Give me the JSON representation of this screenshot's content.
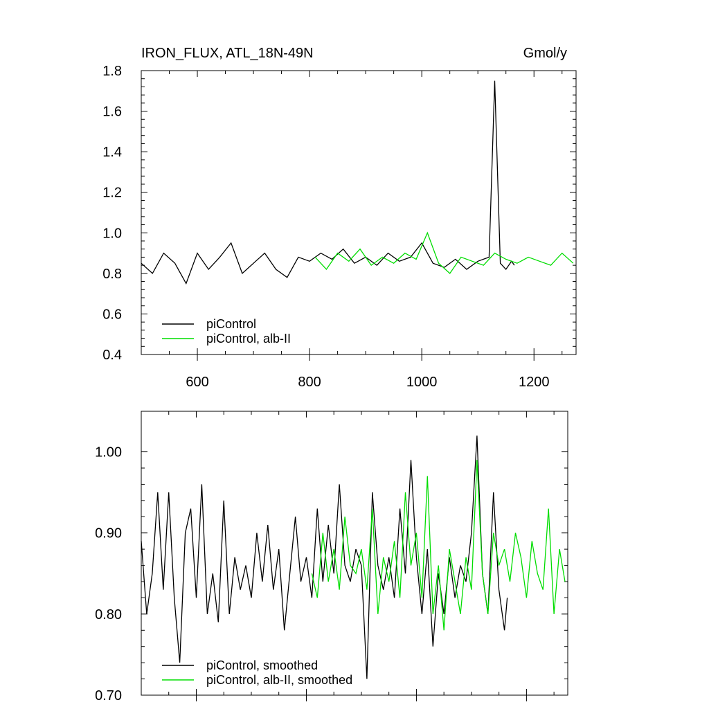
{
  "chart_data": [
    {
      "type": "line",
      "title": "IRON_FLUX, ATL_18N-49N",
      "units": "Gmol/y",
      "xlim": [
        500,
        1275
      ],
      "ylim": [
        0.4,
        1.8
      ],
      "x_ticks": [
        600,
        800,
        1000,
        1200
      ],
      "x_tick_labels": [
        "600",
        "800",
        "1000",
        "1200"
      ],
      "y_ticks": [
        0.4,
        0.6,
        0.8,
        1.0,
        1.2,
        1.4,
        1.6,
        1.8
      ],
      "y_tick_labels": [
        "0.4",
        "0.6",
        "0.8",
        "1.0",
        "1.2",
        "1.4",
        "1.6",
        "1.8"
      ],
      "legend_position": "bottom-left",
      "grid": false,
      "series": [
        {
          "name": "piControl",
          "color": "#000000",
          "x": [
            500,
            520,
            540,
            560,
            580,
            600,
            620,
            640,
            660,
            680,
            700,
            720,
            740,
            760,
            780,
            800,
            820,
            840,
            860,
            880,
            900,
            920,
            940,
            960,
            980,
            1000,
            1020,
            1040,
            1060,
            1080,
            1100,
            1120,
            1130,
            1140,
            1150,
            1160,
            1165
          ],
          "y": [
            0.85,
            0.8,
            0.9,
            0.85,
            0.75,
            0.9,
            0.82,
            0.88,
            0.95,
            0.8,
            0.85,
            0.9,
            0.82,
            0.78,
            0.88,
            0.86,
            0.9,
            0.87,
            0.92,
            0.85,
            0.88,
            0.84,
            0.9,
            0.86,
            0.88,
            0.95,
            0.85,
            0.83,
            0.87,
            0.82,
            0.86,
            0.88,
            1.75,
            0.85,
            0.82,
            0.86,
            0.84
          ]
        },
        {
          "name": "piControl, alb-II",
          "color": "#00dd00",
          "x": [
            810,
            830,
            850,
            870,
            890,
            910,
            930,
            950,
            970,
            990,
            1010,
            1030,
            1050,
            1070,
            1090,
            1110,
            1130,
            1150,
            1170,
            1190,
            1210,
            1230,
            1250,
            1270
          ],
          "y": [
            0.88,
            0.82,
            0.9,
            0.86,
            0.92,
            0.84,
            0.88,
            0.85,
            0.9,
            0.87,
            1.0,
            0.85,
            0.8,
            0.88,
            0.86,
            0.84,
            0.9,
            0.87,
            0.85,
            0.88,
            0.86,
            0.84,
            0.9,
            0.85
          ]
        }
      ]
    },
    {
      "type": "line",
      "xlim": [
        500,
        1275
      ],
      "ylim": [
        0.7,
        1.05
      ],
      "x_ticks": [
        600,
        800,
        1000,
        1200
      ],
      "y_ticks": [
        0.7,
        0.8,
        0.9,
        1.0
      ],
      "y_tick_labels": [
        "0.70",
        "0.80",
        "0.90",
        "1.00"
      ],
      "legend_position": "bottom-left",
      "grid": false,
      "series": [
        {
          "name": "piControl, smoothed",
          "color": "#000000",
          "x": [
            500,
            510,
            520,
            530,
            540,
            550,
            560,
            570,
            580,
            590,
            600,
            610,
            620,
            630,
            640,
            650,
            660,
            670,
            680,
            690,
            700,
            710,
            720,
            730,
            740,
            750,
            760,
            770,
            780,
            790,
            800,
            810,
            820,
            830,
            840,
            850,
            860,
            870,
            880,
            890,
            900,
            910,
            920,
            930,
            940,
            950,
            960,
            970,
            980,
            990,
            1000,
            1010,
            1020,
            1030,
            1040,
            1050,
            1060,
            1070,
            1080,
            1090,
            1100,
            1110,
            1120,
            1130,
            1140,
            1150,
            1160,
            1165
          ],
          "y": [
            0.89,
            0.8,
            0.85,
            0.95,
            0.83,
            0.95,
            0.82,
            0.74,
            0.9,
            0.93,
            0.82,
            0.96,
            0.8,
            0.85,
            0.79,
            0.94,
            0.8,
            0.87,
            0.83,
            0.86,
            0.82,
            0.9,
            0.84,
            0.91,
            0.83,
            0.88,
            0.78,
            0.85,
            0.92,
            0.84,
            0.87,
            0.82,
            0.93,
            0.84,
            0.91,
            0.85,
            0.96,
            0.86,
            0.84,
            0.88,
            0.86,
            0.72,
            0.95,
            0.86,
            0.83,
            0.87,
            0.82,
            0.93,
            0.85,
            0.99,
            0.87,
            0.8,
            0.88,
            0.76,
            0.85,
            0.8,
            0.87,
            0.82,
            0.86,
            0.84,
            0.9,
            1.02,
            0.85,
            0.8,
            0.95,
            0.83,
            0.78,
            0.82
          ]
        },
        {
          "name": "piControl, alb-II, smoothed",
          "color": "#00dd00",
          "x": [
            810,
            820,
            830,
            840,
            850,
            860,
            870,
            880,
            890,
            900,
            910,
            920,
            930,
            940,
            950,
            960,
            970,
            980,
            990,
            1000,
            1010,
            1020,
            1030,
            1040,
            1050,
            1060,
            1070,
            1080,
            1090,
            1100,
            1110,
            1120,
            1130,
            1140,
            1150,
            1160,
            1170,
            1180,
            1190,
            1200,
            1210,
            1220,
            1230,
            1240,
            1250,
            1260,
            1270
          ],
          "y": [
            0.85,
            0.82,
            0.9,
            0.84,
            0.88,
            0.83,
            0.92,
            0.86,
            0.85,
            0.88,
            0.83,
            0.93,
            0.8,
            0.87,
            0.84,
            0.89,
            0.82,
            0.95,
            0.86,
            0.9,
            0.82,
            0.97,
            0.8,
            0.86,
            0.78,
            0.88,
            0.84,
            0.8,
            0.87,
            0.83,
            0.99,
            0.85,
            0.8,
            0.9,
            0.86,
            0.88,
            0.84,
            0.9,
            0.87,
            0.82,
            0.89,
            0.85,
            0.83,
            0.93,
            0.8,
            0.88,
            0.84
          ]
        }
      ]
    }
  ]
}
